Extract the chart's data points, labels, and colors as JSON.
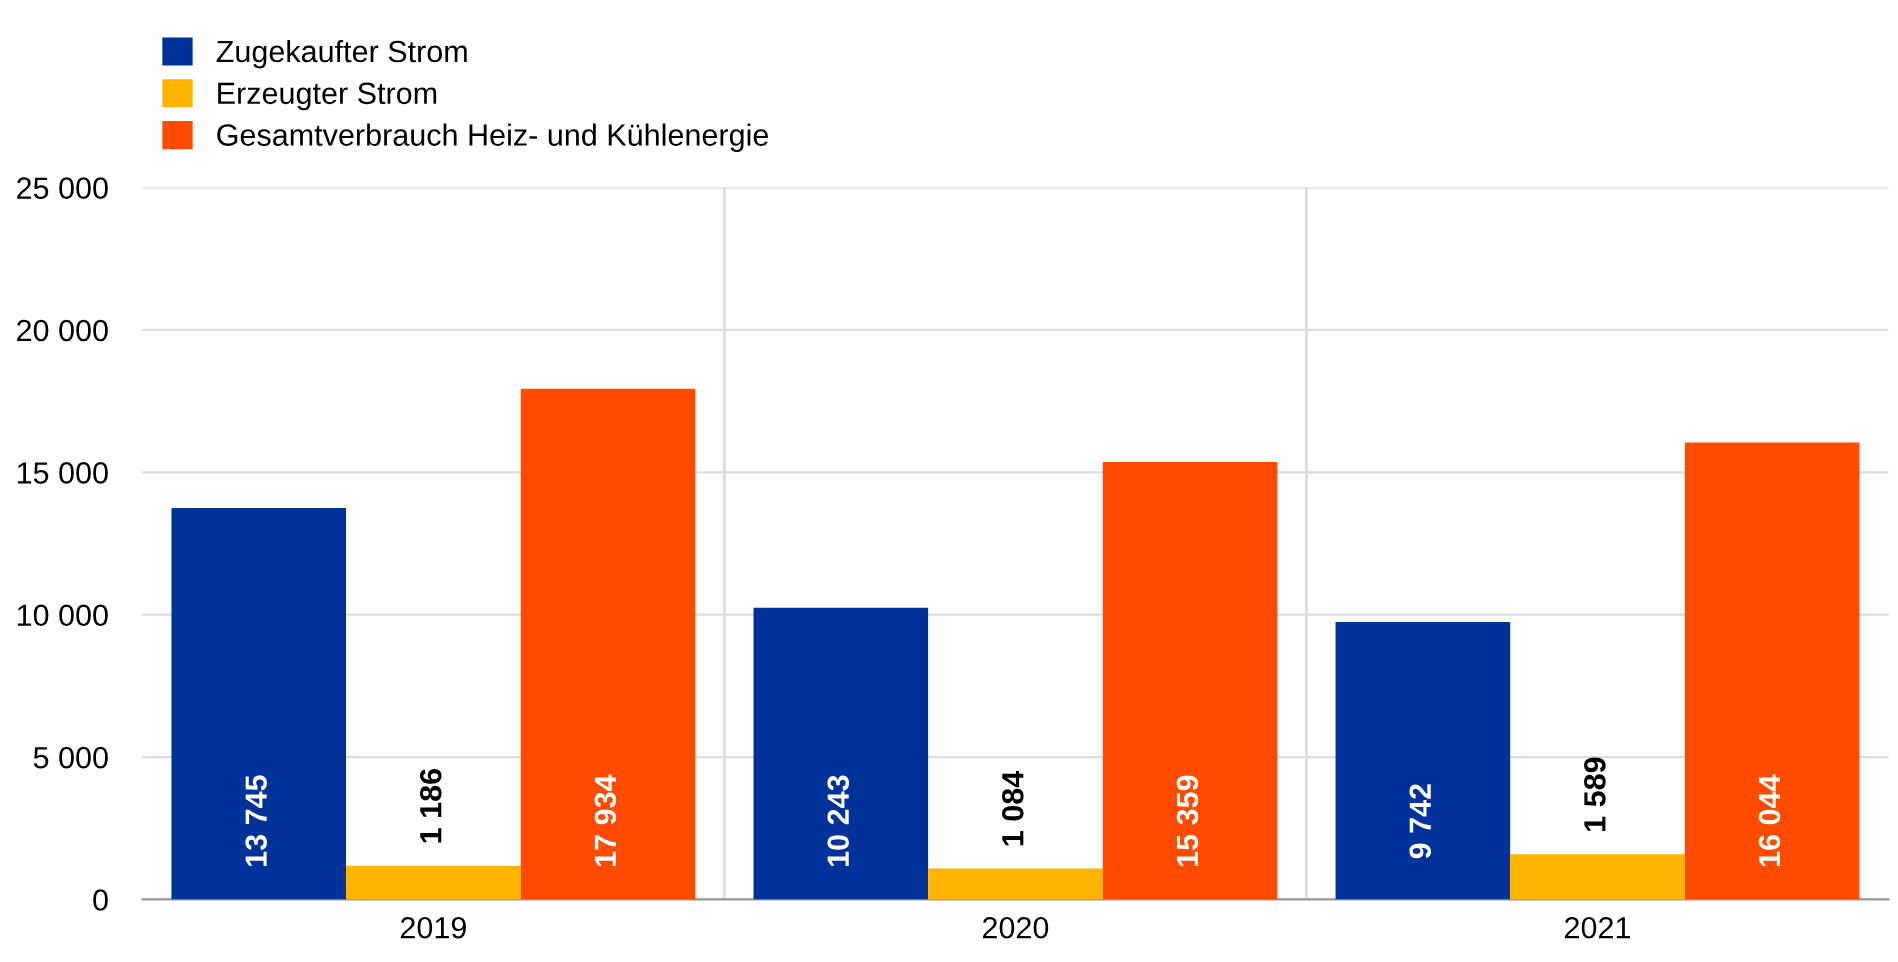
{
  "chart_data": {
    "type": "bar",
    "categories": [
      "2019",
      "2020",
      "2021"
    ],
    "series": [
      {
        "name": "Zugekaufter Strom",
        "color": "#003299",
        "values": [
          13745,
          10243,
          9742
        ],
        "value_labels": [
          "13 745",
          "10 243",
          "9 742"
        ]
      },
      {
        "name": "Erzeugter Strom",
        "color": "#ffb400",
        "values": [
          1186,
          1084,
          1589
        ],
        "value_labels": [
          "1 186",
          "1 084",
          "1 589"
        ]
      },
      {
        "name": "Gesamtverbrauch Heiz- und Kühlenergie",
        "color": "#ff4b00",
        "values": [
          17934,
          15359,
          16044
        ],
        "value_labels": [
          "17 934",
          "15 359",
          "16 044"
        ]
      }
    ],
    "ylim": [
      0,
      25000
    ],
    "yticks": [
      0,
      {
        "value": 5000,
        "label": "5 000"
      },
      {
        "value": 10000,
        "label": "10 000"
      },
      {
        "value": 15000,
        "label": "15 000"
      },
      {
        "value": 20000,
        "label": "20 000"
      },
      {
        "value": 25000,
        "label": "25 000"
      }
    ],
    "grid": true,
    "legend": "top left"
  }
}
